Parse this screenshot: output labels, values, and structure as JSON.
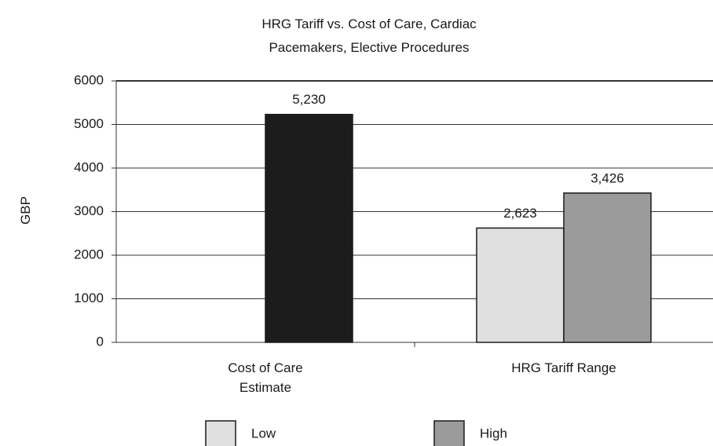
{
  "chart_data": {
    "type": "bar",
    "title": "HRG Tariff vs. Cost of Care, Cardiac Pacemakers, Elective Procedures",
    "ylabel": "GBP",
    "categories": [
      "Cost of Care Estimate",
      "HRG Tariff Range"
    ],
    "series": [
      {
        "color": "#1c1c1c",
        "values": [
          5230,
          null
        ],
        "value_labels": [
          "5,230",
          null
        ]
      },
      {
        "name": "Low",
        "color": "#e0e0e0",
        "values": [
          null,
          2623
        ],
        "value_labels": [
          null,
          "2,623"
        ]
      },
      {
        "name": "High",
        "color": "#9b9b9b",
        "values": [
          null,
          3426
        ],
        "value_labels": [
          null,
          "3,426"
        ]
      }
    ],
    "ylim": [
      0,
      6000
    ],
    "yticks": [
      0,
      1000,
      2000,
      3000,
      4000,
      5000,
      6000
    ],
    "grid": true
  }
}
